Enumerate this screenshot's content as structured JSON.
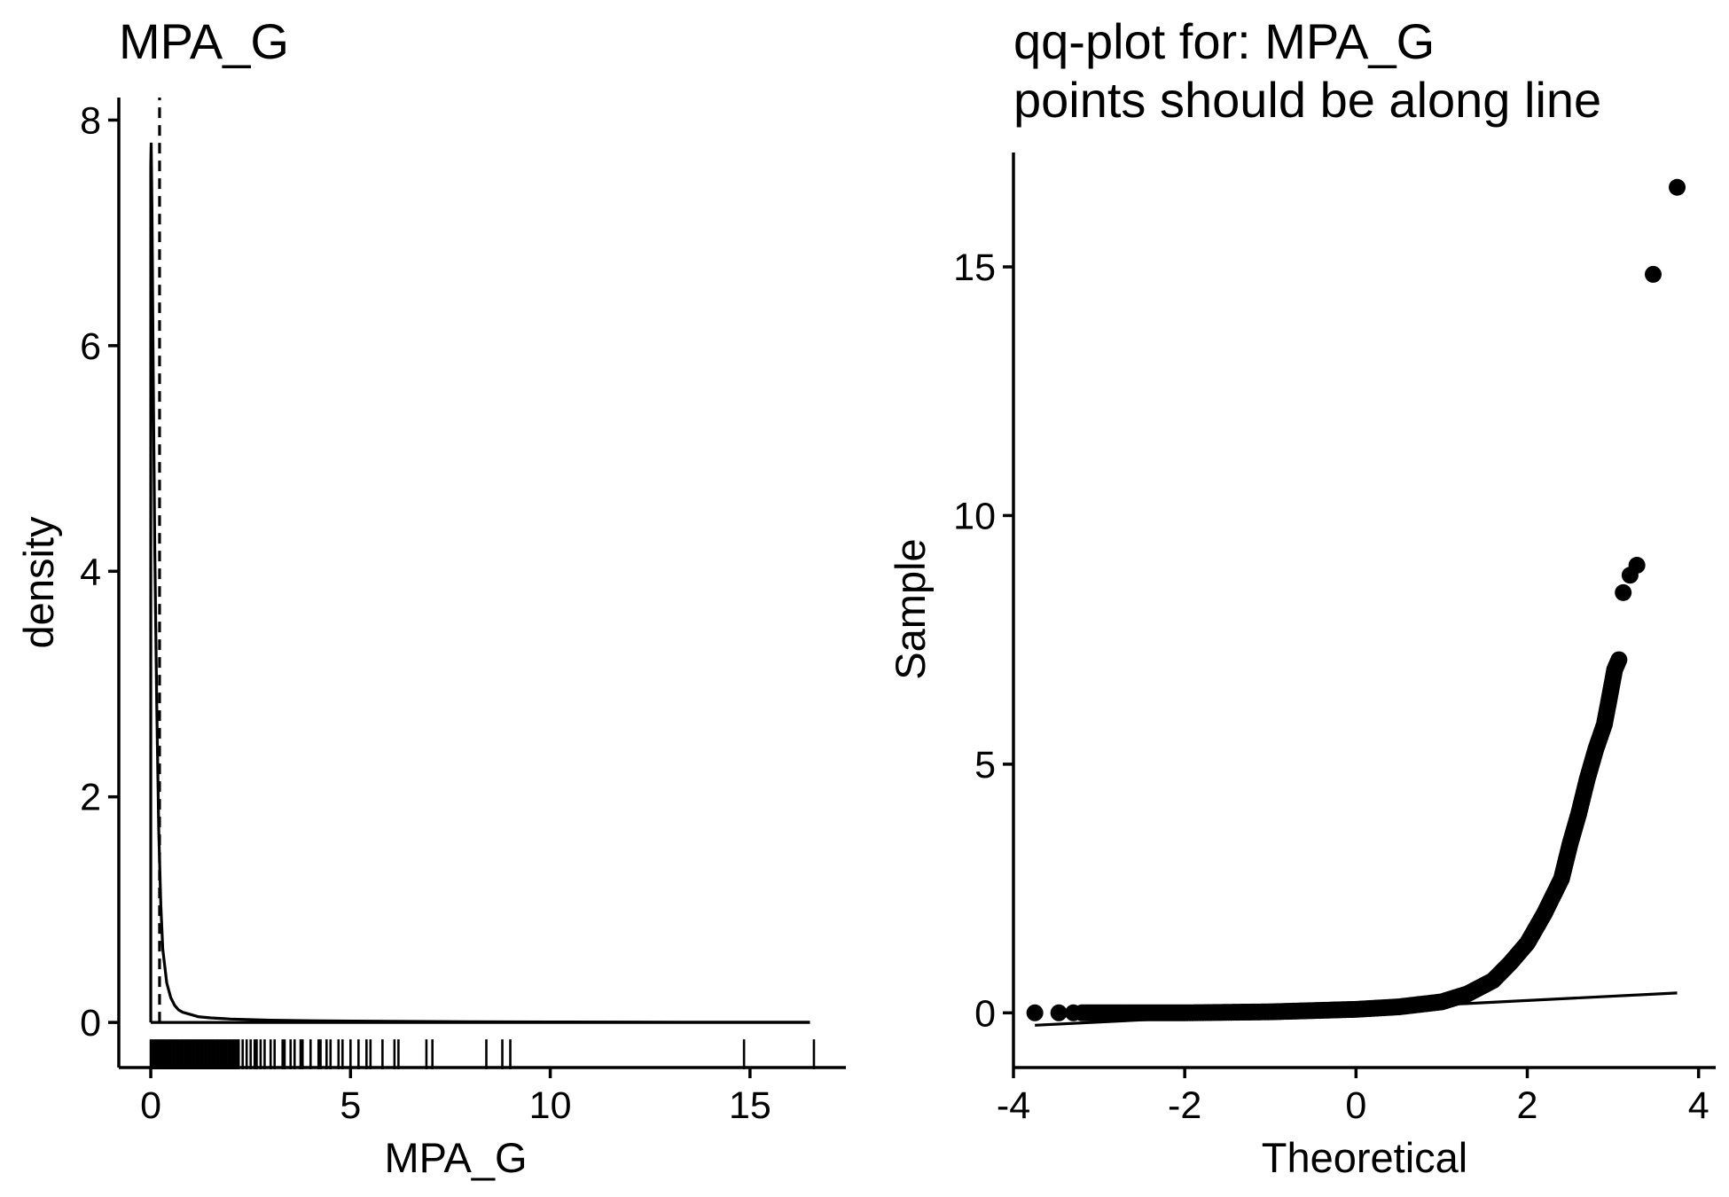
{
  "chart_data": [
    {
      "type": "line",
      "title": "MPA_G",
      "xlabel": "MPA_G",
      "ylabel": "density",
      "xlim": [
        -0.8,
        17.4
      ],
      "ylim": [
        -0.4,
        8.2
      ],
      "x_ticks": [
        0,
        5,
        10,
        15
      ],
      "y_ticks": [
        0,
        2,
        4,
        6,
        8
      ],
      "x_tick_labels": [
        "0",
        "5",
        "10",
        "15"
      ],
      "y_tick_labels": [
        "0",
        "2",
        "4",
        "6",
        "8"
      ],
      "grid": false,
      "legend": "none",
      "mean_line_x": 0.22,
      "density_curve": {
        "x": [
          0,
          0.01,
          0.03,
          0.06,
          0.1,
          0.15,
          0.2,
          0.25,
          0.3,
          0.4,
          0.5,
          0.6,
          0.7,
          0.8,
          1.0,
          1.2,
          1.5,
          2.0,
          3.0,
          4.0,
          6.0,
          8.0,
          10.0,
          12.0,
          14.0,
          16.5
        ],
        "y": [
          7.6,
          7.8,
          7.2,
          5.8,
          4.2,
          2.8,
          1.7,
          1.05,
          0.65,
          0.35,
          0.22,
          0.15,
          0.11,
          0.09,
          0.07,
          0.05,
          0.04,
          0.03,
          0.02,
          0.015,
          0.01,
          0.006,
          0.004,
          0.003,
          0.002,
          0.002
        ]
      },
      "rug_x": [
        0,
        0.05,
        0.1,
        0.15,
        0.2,
        0.25,
        0.3,
        0.35,
        0.4,
        0.45,
        0.5,
        0.55,
        0.6,
        0.65,
        0.7,
        0.75,
        0.8,
        0.85,
        0.9,
        0.95,
        1.0,
        1.05,
        1.1,
        1.15,
        1.2,
        1.25,
        1.3,
        1.35,
        1.4,
        1.45,
        1.5,
        1.55,
        1.6,
        1.65,
        1.7,
        1.75,
        1.8,
        1.85,
        1.9,
        1.95,
        2.0,
        2.05,
        2.1,
        2.15,
        2.2,
        2.3,
        2.4,
        2.5,
        2.6,
        2.65,
        2.75,
        2.85,
        3.0,
        3.1,
        3.3,
        3.35,
        3.5,
        3.6,
        3.75,
        3.8,
        4.0,
        4.2,
        4.25,
        4.4,
        4.5,
        4.7,
        4.8,
        5.0,
        5.2,
        5.4,
        5.5,
        5.8,
        6.1,
        6.2,
        6.9,
        7.05,
        8.4,
        8.8,
        9.0,
        14.85,
        16.6
      ]
    },
    {
      "type": "scatter",
      "title": "qq-plot for: MPA_G",
      "subtitle": "points should be along line",
      "xlabel": "Theoretical",
      "ylabel": "Sample",
      "xlim": [
        -4.0,
        4.2
      ],
      "ylim": [
        -1.1,
        17.3
      ],
      "x_ticks": [
        -4,
        -2,
        0,
        2,
        4
      ],
      "y_ticks": [
        0,
        5,
        10,
        15
      ],
      "x_tick_labels": [
        "-4",
        "-2",
        "0",
        "2",
        "4"
      ],
      "y_tick_labels": [
        "0",
        "5",
        "10",
        "15"
      ],
      "grid": false,
      "legend": "none",
      "reference_line": {
        "x": [
          -3.75,
          3.75
        ],
        "y": [
          -0.25,
          0.4
        ]
      },
      "extreme_points": {
        "x": [
          -3.75,
          -3.47,
          -3.3,
          3.12,
          3.2,
          3.28,
          3.47,
          3.75
        ],
        "y": [
          0.0,
          0.0,
          0.0,
          8.45,
          8.8,
          9.0,
          14.85,
          16.6
        ]
      },
      "curve_summary": {
        "x": [
          -3.2,
          -2.0,
          -1.0,
          0.0,
          0.5,
          1.0,
          1.3,
          1.6,
          1.8,
          2.0,
          2.2,
          2.4,
          2.5,
          2.6,
          2.7,
          2.8,
          2.9,
          2.95,
          3.02,
          3.07
        ],
        "y": [
          0.0,
          0.0,
          0.02,
          0.07,
          0.12,
          0.22,
          0.38,
          0.65,
          1.0,
          1.4,
          2.0,
          2.7,
          3.4,
          4.0,
          4.7,
          5.3,
          5.8,
          6.25,
          6.9,
          7.1
        ]
      }
    }
  ]
}
